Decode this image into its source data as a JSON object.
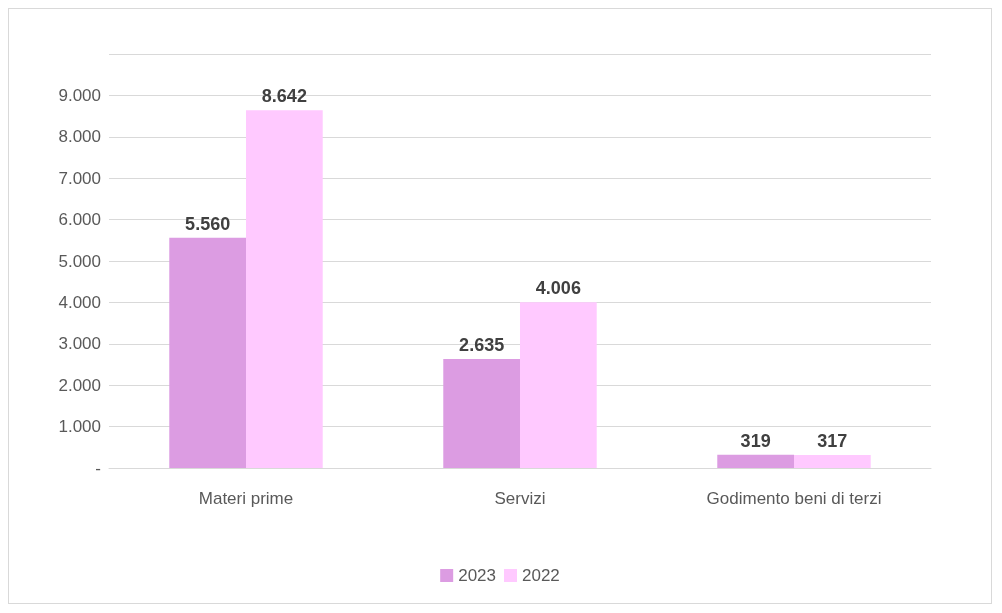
{
  "chart_data": {
    "type": "bar",
    "categories": [
      "Materi prime",
      "Servizi",
      "Godimento beni di terzi"
    ],
    "series": [
      {
        "name": "2023",
        "color": "#dc9ce2",
        "values": [
          5560,
          2635,
          319
        ],
        "value_labels": [
          "5.560",
          "2.635",
          "319"
        ]
      },
      {
        "name": "2022",
        "color": "#ffc9ff",
        "values": [
          8642,
          4006,
          317
        ],
        "value_labels": [
          "8.642",
          "4.006",
          "317"
        ]
      }
    ],
    "ylim": [
      0,
      10000
    ],
    "yticks": [
      {
        "value": 0,
        "label": "-"
      },
      {
        "value": 1000,
        "label": "1.000"
      },
      {
        "value": 2000,
        "label": "2.000"
      },
      {
        "value": 3000,
        "label": "3.000"
      },
      {
        "value": 4000,
        "label": "4.000"
      },
      {
        "value": 5000,
        "label": "5.000"
      },
      {
        "value": 6000,
        "label": "6.000"
      },
      {
        "value": 7000,
        "label": "7.000"
      },
      {
        "value": 8000,
        "label": "8.000"
      },
      {
        "value": 9000,
        "label": "9.000"
      },
      {
        "value": 10000,
        "label": null
      }
    ],
    "grid": "y",
    "legend": "bottom"
  }
}
